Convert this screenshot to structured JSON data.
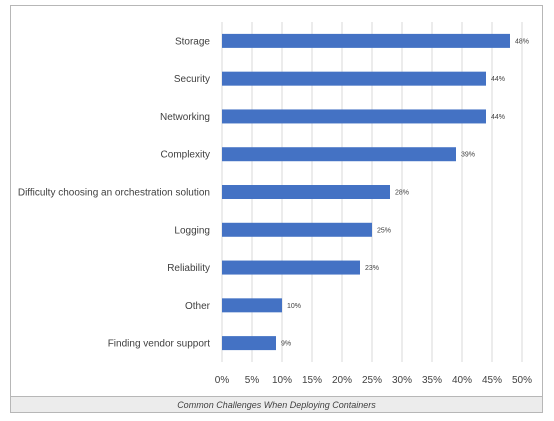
{
  "chart_data": {
    "type": "bar",
    "orientation": "horizontal",
    "categories": [
      "Storage",
      "Security",
      "Networking",
      "Complexity",
      "Difficulty choosing an orchestration solution",
      "Logging",
      "Reliability",
      "Other",
      "Finding vendor support"
    ],
    "values": [
      48,
      44,
      44,
      39,
      28,
      25,
      23,
      10,
      9
    ],
    "data_labels": [
      "48%",
      "44%",
      "44%",
      "39%",
      "28%",
      "25%",
      "23%",
      "10%",
      "9%"
    ],
    "xlim": [
      0,
      50
    ],
    "x_ticks": [
      0,
      5,
      10,
      15,
      20,
      25,
      30,
      35,
      40,
      45,
      50
    ],
    "x_tick_labels": [
      "0%",
      "5%",
      "10%",
      "15%",
      "20%",
      "25%",
      "30%",
      "35%",
      "40%",
      "45%",
      "50%"
    ],
    "grid": true,
    "bar_color": "#4472c4",
    "grid_color": "#d9d9d9"
  },
  "caption": "Common Challenges When Deploying Containers"
}
